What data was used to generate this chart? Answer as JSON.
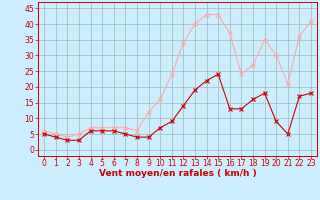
{
  "x": [
    0,
    1,
    2,
    3,
    4,
    5,
    6,
    7,
    8,
    9,
    10,
    11,
    12,
    13,
    14,
    15,
    16,
    17,
    18,
    19,
    20,
    21,
    22,
    23
  ],
  "wind_mean": [
    5,
    4,
    3,
    3,
    6,
    6,
    6,
    5,
    4,
    4,
    7,
    9,
    14,
    19,
    22,
    24,
    13,
    13,
    16,
    18,
    9,
    5,
    17,
    18
  ],
  "wind_gust": [
    6,
    5,
    4,
    5,
    7,
    7,
    7,
    7,
    6,
    12,
    16,
    24,
    34,
    40,
    43,
    43,
    37,
    24,
    27,
    35,
    30,
    21,
    36,
    41
  ],
  "wind_mean_color": "#cc0000",
  "wind_gust_color": "#ffaaaa",
  "bg_color": "#cceeff",
  "grid_color": "#99bbbb",
  "axis_color": "#cc0000",
  "xlabel": "Vent moyen/en rafales ( km/h )",
  "ylim": [
    -2,
    47
  ],
  "yticks": [
    0,
    5,
    10,
    15,
    20,
    25,
    30,
    35,
    40,
    45
  ],
  "tick_fontsize": 5.5,
  "label_fontsize": 6.5
}
